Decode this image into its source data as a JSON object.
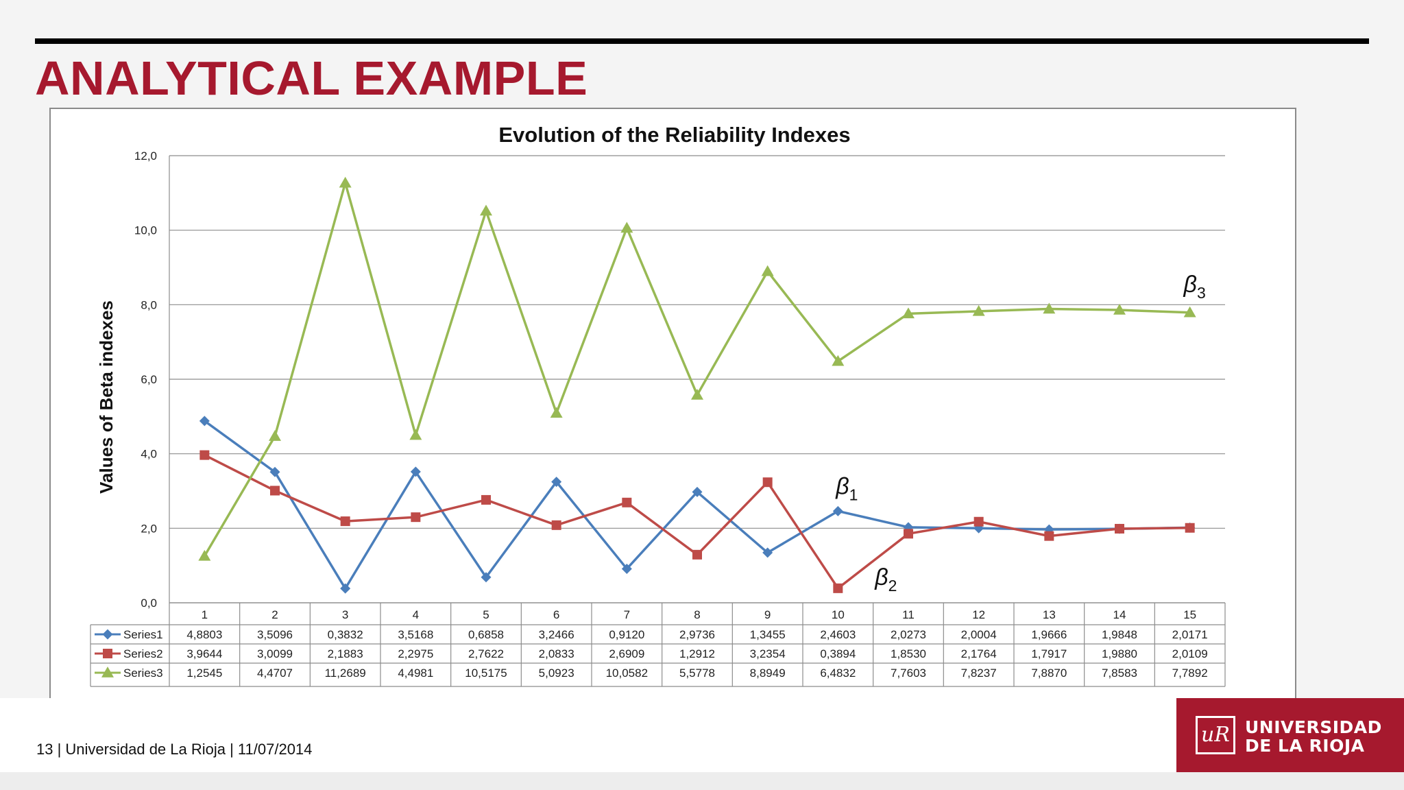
{
  "slide": {
    "title": "ANALYTICAL EXAMPLE",
    "footer": "13 | Universidad de La Rioja | 11/07/2014",
    "logo": {
      "mark": "uR",
      "line1": "UNIVERSIDAD",
      "line2": "DE LA RIOJA"
    }
  },
  "chart_data": {
    "type": "line",
    "title": "Evolution of the Reliability Indexes",
    "xlabel": "",
    "ylabel": "Values of Beta indexes",
    "ylim": [
      0,
      12
    ],
    "yticks": [
      "0,0",
      "2,0",
      "4,0",
      "6,0",
      "8,0",
      "10,0",
      "12,0"
    ],
    "categories": [
      "1",
      "2",
      "3",
      "4",
      "5",
      "6",
      "7",
      "8",
      "9",
      "10",
      "11",
      "12",
      "13",
      "14",
      "15"
    ],
    "grid": true,
    "legend": "data-table",
    "series": [
      {
        "name": "Series1",
        "color": "#4a7ebb",
        "marker": "diamond",
        "values": [
          4.8803,
          3.5096,
          0.3832,
          3.5168,
          0.6858,
          3.2466,
          0.912,
          2.9736,
          1.3455,
          2.4603,
          2.0273,
          2.0004,
          1.9666,
          1.9848,
          2.0171
        ],
        "labels": [
          "4,8803",
          "3,5096",
          "0,3832",
          "3,5168",
          "0,6858",
          "3,2466",
          "0,9120",
          "2,9736",
          "1,3455",
          "2,4603",
          "2,0273",
          "2,0004",
          "1,9666",
          "1,9848",
          "2,0171"
        ]
      },
      {
        "name": "Series2",
        "color": "#be4b48",
        "marker": "square",
        "values": [
          3.9644,
          3.0099,
          2.1883,
          2.2975,
          2.7622,
          2.0833,
          2.6909,
          1.2912,
          3.2354,
          0.3894,
          1.853,
          2.1764,
          1.7917,
          1.988,
          2.0109
        ],
        "labels": [
          "3,9644",
          "3,0099",
          "2,1883",
          "2,2975",
          "2,7622",
          "2,0833",
          "2,6909",
          "1,2912",
          "3,2354",
          "0,3894",
          "1,8530",
          "2,1764",
          "1,7917",
          "1,9880",
          "2,0109"
        ]
      },
      {
        "name": "Series3",
        "color": "#98b954",
        "marker": "triangle",
        "values": [
          1.2545,
          4.4707,
          11.2689,
          4.4981,
          10.5175,
          5.0923,
          10.0582,
          5.5778,
          8.8949,
          6.4832,
          7.7603,
          7.8237,
          7.887,
          7.8583,
          7.7892
        ],
        "labels": [
          "1,2545",
          "4,4707",
          "11,2689",
          "4,4981",
          "10,5175",
          "5,0923",
          "10,0582",
          "5,5778",
          "8,8949",
          "6,4832",
          "7,7603",
          "7,8237",
          "7,8870",
          "7,8583",
          "7,7892"
        ]
      }
    ],
    "annotations": [
      {
        "symbol": "β",
        "sub": "1",
        "series": 0,
        "category": "10"
      },
      {
        "symbol": "β",
        "sub": "2",
        "series": 1,
        "category": "10"
      },
      {
        "symbol": "β",
        "sub": "3",
        "series": 2,
        "category": "15"
      }
    ]
  }
}
